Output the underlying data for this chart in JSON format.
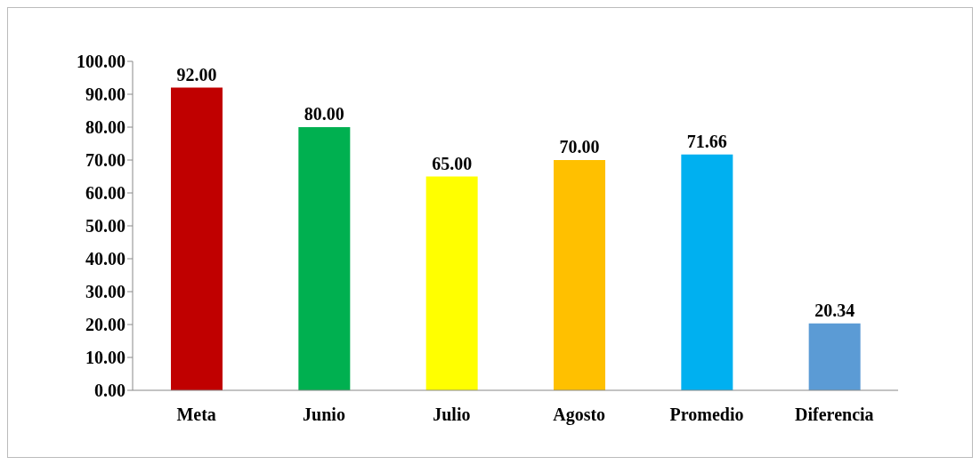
{
  "chart_data": {
    "type": "bar",
    "categories": [
      "Meta",
      "Junio",
      "Julio",
      "Agosto",
      "Promedio",
      "Diferencia"
    ],
    "values": [
      92,
      80,
      65,
      70,
      71.66,
      20.34
    ],
    "colors": [
      "#c00000",
      "#00b050",
      "#ffff00",
      "#ffc000",
      "#00b0f0",
      "#5b9bd5"
    ],
    "value_labels": [
      "92.00",
      "80.00",
      "65.00",
      "70.00",
      "71.66",
      "20.34"
    ],
    "ylim": [
      0,
      100
    ],
    "yticks": [
      {
        "value": 0,
        "label": "0.00"
      },
      {
        "value": 10,
        "label": "10.00"
      },
      {
        "value": 20,
        "label": "20.00"
      },
      {
        "value": 30,
        "label": "30.00"
      },
      {
        "value": 40,
        "label": "40.00"
      },
      {
        "value": 50,
        "label": "50.00"
      },
      {
        "value": 60,
        "label": "60.00"
      },
      {
        "value": 70,
        "label": "70.00"
      },
      {
        "value": 80,
        "label": "80.00"
      },
      {
        "value": 90,
        "label": "90.00"
      },
      {
        "value": 100,
        "label": "100.00"
      }
    ],
    "grid": false,
    "legend": false
  }
}
